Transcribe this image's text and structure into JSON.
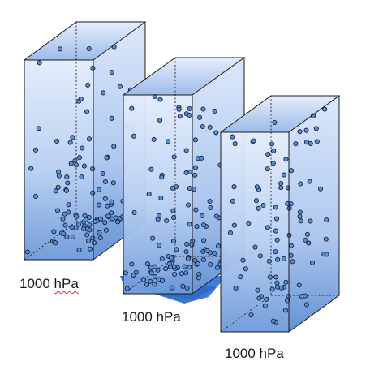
{
  "columns": [
    {
      "pressure_label": "1000 hPa",
      "has_base_shadow": false
    },
    {
      "pressure_label": "1000 hPa",
      "has_base_shadow": true
    },
    {
      "pressure_label": "1000 hPa",
      "has_base_shadow": false
    }
  ],
  "colors": {
    "column_fill_top": "#dfe9fb",
    "column_fill_bottom": "#5e8ed3",
    "edge": "#1b1b1b",
    "particle_fill": "#5b8ed8",
    "particle_stroke": "#16243c",
    "base_shadow": "#2f6bc7"
  }
}
